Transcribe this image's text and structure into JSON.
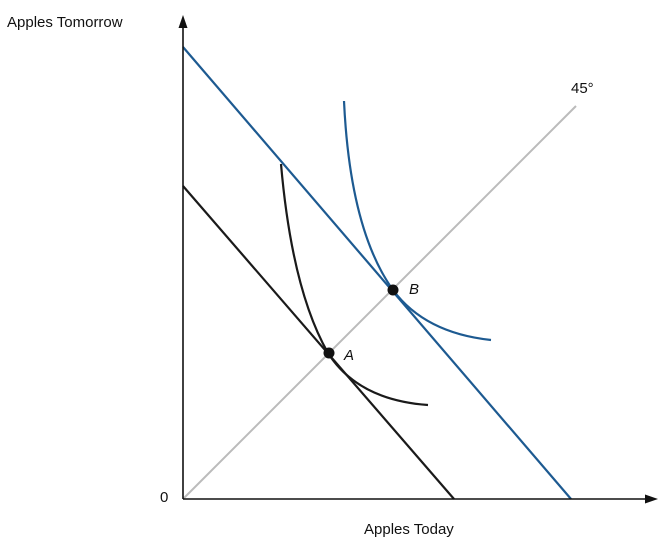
{
  "diagram": {
    "y_axis_label": "Apples Tomorrow",
    "x_axis_label": "Apples Today",
    "origin_label": "0",
    "diagonal_label": "45°",
    "points": [
      {
        "label": "A"
      },
      {
        "label": "B"
      }
    ],
    "colors": {
      "axes": "#111111",
      "black_lines": "#1a1a1a",
      "blue_lines": "#1d5a91",
      "diagonal": "#bbbbbb",
      "points": "#111111"
    }
  }
}
